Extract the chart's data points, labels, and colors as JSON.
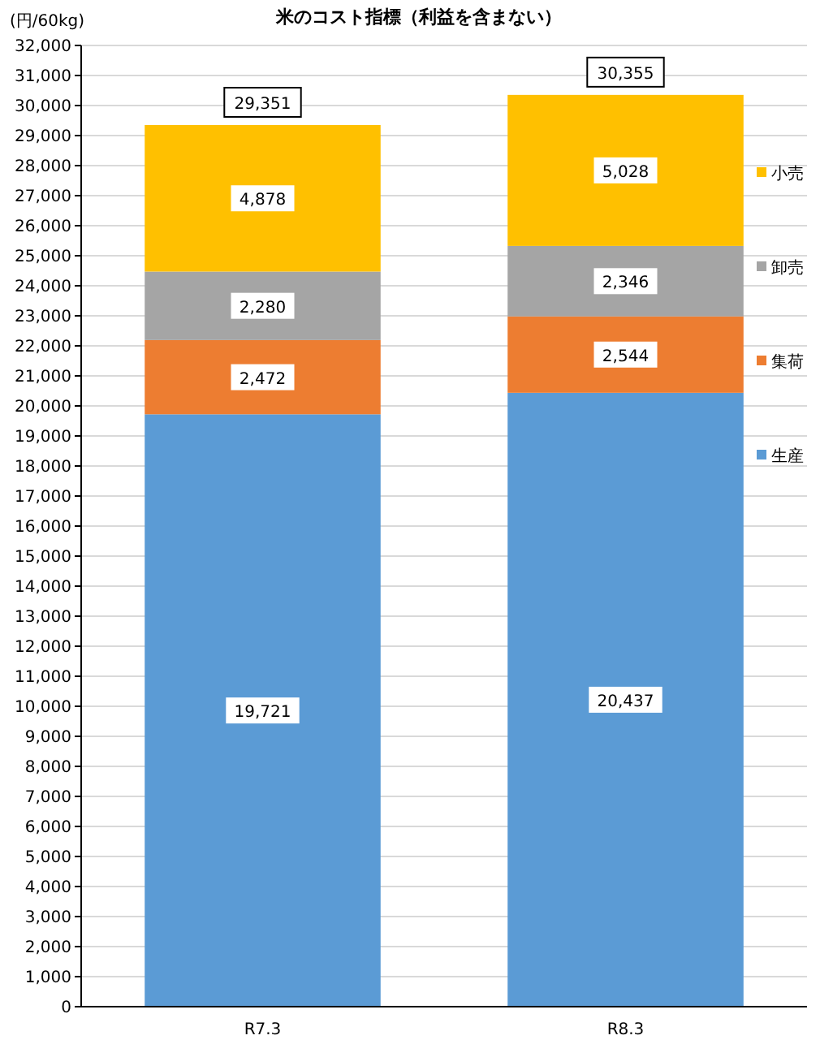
{
  "chart_data": {
    "type": "bar",
    "stacked": true,
    "title": "米のコスト指標（利益を含まない）",
    "ylabel": "(円/60kg)",
    "categories": [
      "R7.3",
      "R8.3"
    ],
    "series": [
      {
        "name": "生産",
        "color": "#5b9bd5",
        "values": [
          19721,
          20437
        ],
        "value_labels": [
          "19,721",
          "20,437"
        ]
      },
      {
        "name": "集荷",
        "color": "#ed7d31",
        "values": [
          2472,
          2544
        ],
        "value_labels": [
          "2,472",
          "2,544"
        ]
      },
      {
        "name": "卸売",
        "color": "#a5a5a5",
        "values": [
          2280,
          2346
        ],
        "value_labels": [
          "2,280",
          "2,346"
        ]
      },
      {
        "name": "小売",
        "color": "#ffc000",
        "values": [
          4878,
          5028
        ],
        "value_labels": [
          "4,878",
          "5,028"
        ]
      }
    ],
    "totals": [
      "29,351",
      "30,355"
    ],
    "ylim": [
      0,
      32000
    ],
    "yticks": [
      0,
      {
        "value": 1000,
        "label": "1,000"
      },
      {
        "value": 2000,
        "label": "2,000"
      },
      {
        "value": 3000,
        "label": "3,000"
      },
      {
        "value": 4000,
        "label": "4,000"
      },
      {
        "value": 5000,
        "label": "5,000"
      },
      {
        "value": 6000,
        "label": "6,000"
      },
      {
        "value": 7000,
        "label": "7,000"
      },
      {
        "value": 8000,
        "label": "8,000"
      },
      {
        "value": 9000,
        "label": "9,000"
      },
      {
        "value": 10000,
        "label": "10,000"
      },
      {
        "value": 11000,
        "label": "11,000"
      },
      {
        "value": 12000,
        "label": "12,000"
      },
      {
        "value": 13000,
        "label": "13,000"
      },
      {
        "value": 14000,
        "label": "14,000"
      },
      {
        "value": 15000,
        "label": "15,000"
      },
      {
        "value": 16000,
        "label": "16,000"
      },
      {
        "value": 17000,
        "label": "17,000"
      },
      {
        "value": 18000,
        "label": "18,000"
      },
      {
        "value": 19000,
        "label": "19,000"
      },
      {
        "value": 20000,
        "label": "20,000"
      },
      {
        "value": 21000,
        "label": "21,000"
      },
      {
        "value": 22000,
        "label": "22,000"
      },
      {
        "value": 23000,
        "label": "23,000"
      },
      {
        "value": 24000,
        "label": "24,000"
      },
      {
        "value": 25000,
        "label": "25,000"
      },
      {
        "value": 26000,
        "label": "26,000"
      },
      {
        "value": 27000,
        "label": "27,000"
      },
      {
        "value": 28000,
        "label": "28,000"
      },
      {
        "value": 29000,
        "label": "29,000"
      },
      {
        "value": 30000,
        "label": "30,000"
      },
      {
        "value": 31000,
        "label": "31,000"
      },
      {
        "value": 32000,
        "label": "32,000"
      }
    ],
    "grid": "y",
    "legend": "right"
  }
}
